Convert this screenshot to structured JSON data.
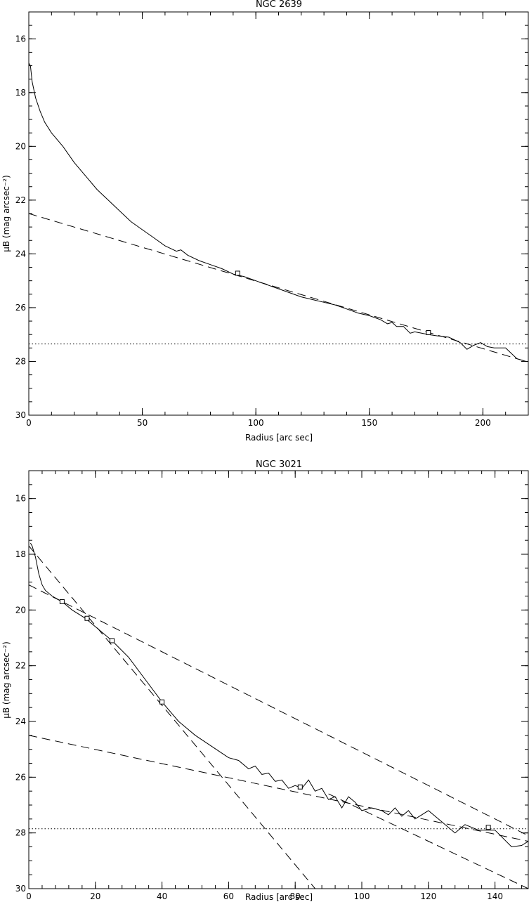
{
  "chart_data": [
    {
      "type": "line",
      "title": "NGC 2639",
      "xlabel": "Radius [arc sec]",
      "ylabel": "μB (mag arcsec⁻²)",
      "xlim": [
        0,
        220
      ],
      "ylim": [
        30,
        15
      ],
      "y_inverted": true,
      "x_ticks": [
        0,
        50,
        100,
        150,
        200
      ],
      "y_ticks": [
        16,
        18,
        20,
        22,
        24,
        26,
        28,
        30
      ],
      "grid": false,
      "series": [
        {
          "style": "solid",
          "x": [
            0,
            0.7,
            1.5,
            3,
            5,
            7,
            10,
            15,
            20,
            25,
            30,
            35,
            40,
            45,
            50,
            55,
            60,
            65,
            67,
            70,
            75,
            80,
            85,
            90,
            95,
            100,
            105,
            110,
            115,
            120,
            125,
            130,
            135,
            140,
            145,
            150,
            155,
            158,
            160,
            162,
            165,
            168,
            170,
            173,
            176,
            180,
            185,
            190,
            193,
            196,
            199,
            202,
            205,
            210,
            215,
            219
          ],
          "y": [
            16.9,
            17.0,
            17.6,
            18.2,
            18.7,
            19.1,
            19.5,
            20.0,
            20.6,
            21.1,
            21.6,
            22.0,
            22.4,
            22.8,
            23.1,
            23.4,
            23.7,
            23.9,
            23.85,
            24.05,
            24.25,
            24.4,
            24.55,
            24.75,
            24.85,
            25.0,
            25.15,
            25.3,
            25.45,
            25.6,
            25.7,
            25.8,
            25.9,
            26.05,
            26.2,
            26.3,
            26.45,
            26.6,
            26.55,
            26.7,
            26.7,
            26.95,
            26.9,
            26.95,
            27.0,
            27.05,
            27.1,
            27.3,
            27.55,
            27.4,
            27.3,
            27.45,
            27.5,
            27.5,
            27.9,
            28.0
          ]
        },
        {
          "style": "dashed",
          "x": [
            0,
            219
          ],
          "y": [
            22.5,
            28.0
          ]
        },
        {
          "style": "dotted",
          "x": [
            0,
            220
          ],
          "y": [
            27.35,
            27.35
          ]
        }
      ],
      "markers": {
        "shape": "square",
        "x": [
          92,
          176
        ],
        "y": [
          24.72,
          26.93
        ]
      }
    },
    {
      "type": "line",
      "title": "NGC 3021",
      "xlabel": "Radius [arc sec]",
      "ylabel": "μB (mag arcsec⁻²)",
      "xlim": [
        0,
        150
      ],
      "ylim": [
        30,
        15
      ],
      "y_inverted": true,
      "x_ticks": [
        0,
        20,
        40,
        60,
        80,
        100,
        120,
        140
      ],
      "x_tick_labels": [
        "0",
        "20",
        "40",
        "60",
        "80",
        "100",
        "120",
        "140"
      ],
      "y_ticks": [
        16,
        18,
        20,
        22,
        24,
        26,
        28,
        30
      ],
      "grid": false,
      "series": [
        {
          "style": "solid",
          "x": [
            0.5,
            1,
            2,
            3,
            4,
            5,
            7,
            10,
            13,
            17,
            20,
            25,
            30,
            35,
            40,
            45,
            50,
            55,
            60,
            63,
            66,
            68,
            70,
            72,
            74,
            76,
            78,
            80,
            82,
            84,
            86,
            88,
            90,
            92,
            94,
            96,
            98,
            100,
            103,
            106,
            108,
            110,
            112,
            114,
            116,
            118,
            120,
            124,
            128,
            131,
            135,
            140,
            145,
            148,
            150
          ],
          "y": [
            17.6,
            17.7,
            18.1,
            18.7,
            19.1,
            19.3,
            19.5,
            19.7,
            20.0,
            20.3,
            20.6,
            21.1,
            21.7,
            22.5,
            23.3,
            24.0,
            24.5,
            24.9,
            25.3,
            25.4,
            25.7,
            25.6,
            25.9,
            25.85,
            26.15,
            26.1,
            26.4,
            26.3,
            26.4,
            26.1,
            26.5,
            26.4,
            26.8,
            26.7,
            27.1,
            26.7,
            26.9,
            27.2,
            27.1,
            27.2,
            27.35,
            27.1,
            27.4,
            27.2,
            27.5,
            27.35,
            27.2,
            27.6,
            28.0,
            27.7,
            27.9,
            27.9,
            28.5,
            28.45,
            28.3
          ]
        },
        {
          "style": "dashed",
          "x": [
            0,
            86
          ],
          "y": [
            17.7,
            30.0
          ]
        },
        {
          "style": "dashed",
          "x": [
            0,
            150
          ],
          "y": [
            19.1,
            28.1
          ]
        },
        {
          "style": "dashed",
          "x": [
            0,
            150
          ],
          "y": [
            24.5,
            28.3
          ]
        },
        {
          "style": "dashed",
          "x": [
            90,
            150
          ],
          "y": [
            26.6,
            30.0
          ]
        },
        {
          "style": "dotted",
          "x": [
            0,
            150
          ],
          "y": [
            27.85,
            27.85
          ]
        }
      ],
      "markers": {
        "shape": "square",
        "x": [
          10,
          17.5,
          25,
          40,
          81.5,
          138
        ],
        "y": [
          19.7,
          20.3,
          21.1,
          23.3,
          26.35,
          27.8
        ]
      }
    }
  ]
}
